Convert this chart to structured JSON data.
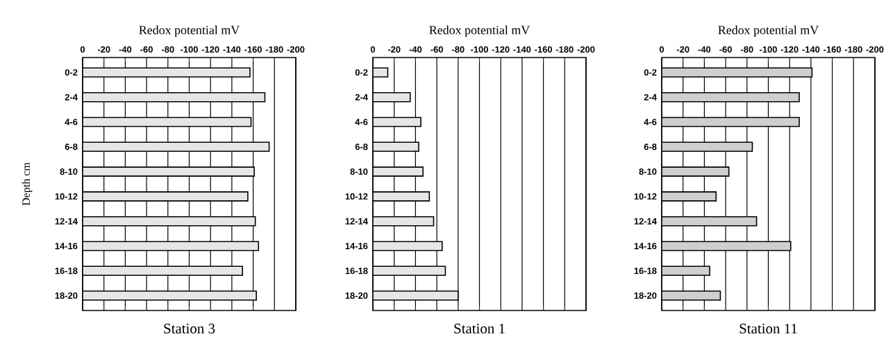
{
  "chart_data": [
    {
      "type": "bar",
      "orientation": "horizontal",
      "title": "Station 3",
      "xlabel": "Redox potential mV",
      "ylabel": "Depth cm",
      "categories": [
        "0-2",
        "2-4",
        "4-6",
        "6-8",
        "8-10",
        "10-12",
        "12-14",
        "14-16",
        "16-18",
        "18-20"
      ],
      "values": [
        -157,
        -171,
        -158,
        -175,
        -161,
        -155,
        -162,
        -165,
        -150,
        -163
      ],
      "color": "#e6e6e6",
      "xlim": [
        0,
        -200
      ],
      "xticks": [
        0,
        -20,
        -40,
        -60,
        -80,
        -100,
        -120,
        -140,
        -160,
        -180,
        -200
      ],
      "grid": "x"
    },
    {
      "type": "bar",
      "orientation": "horizontal",
      "title": "Station 1",
      "xlabel": "Redox potential mV",
      "categories": [
        "0-2",
        "2-4",
        "4-6",
        "6-8",
        "8-10",
        "10-12",
        "12-14",
        "14-16",
        "16-18",
        "18-20"
      ],
      "values": [
        -14,
        -35,
        -45,
        -43,
        -47,
        -53,
        -57,
        -65,
        -68,
        -80
      ],
      "color": "#e6e6e6",
      "xlim": [
        0,
        -200
      ],
      "xticks": [
        0,
        -20,
        -40,
        -60,
        -80,
        -100,
        -120,
        -140,
        -160,
        -180,
        -200
      ],
      "grid": "x"
    },
    {
      "type": "bar",
      "orientation": "horizontal",
      "title": "Station 11",
      "xlabel": "Redox potential mV",
      "categories": [
        "0-2",
        "2-4",
        "4-6",
        "6-8",
        "8-10",
        "10-12",
        "12-14",
        "14-16",
        "16-18",
        "18-20"
      ],
      "values": [
        -141,
        -129,
        -129,
        -85,
        -63,
        -51,
        -89,
        -121,
        -45,
        -55
      ],
      "color": "#cfcfcf",
      "xlim": [
        0,
        -200
      ],
      "xticks": [
        0,
        -20,
        -40,
        -60,
        -80,
        -100,
        -120,
        -140,
        -160,
        -180,
        -200
      ],
      "grid": "x"
    }
  ]
}
